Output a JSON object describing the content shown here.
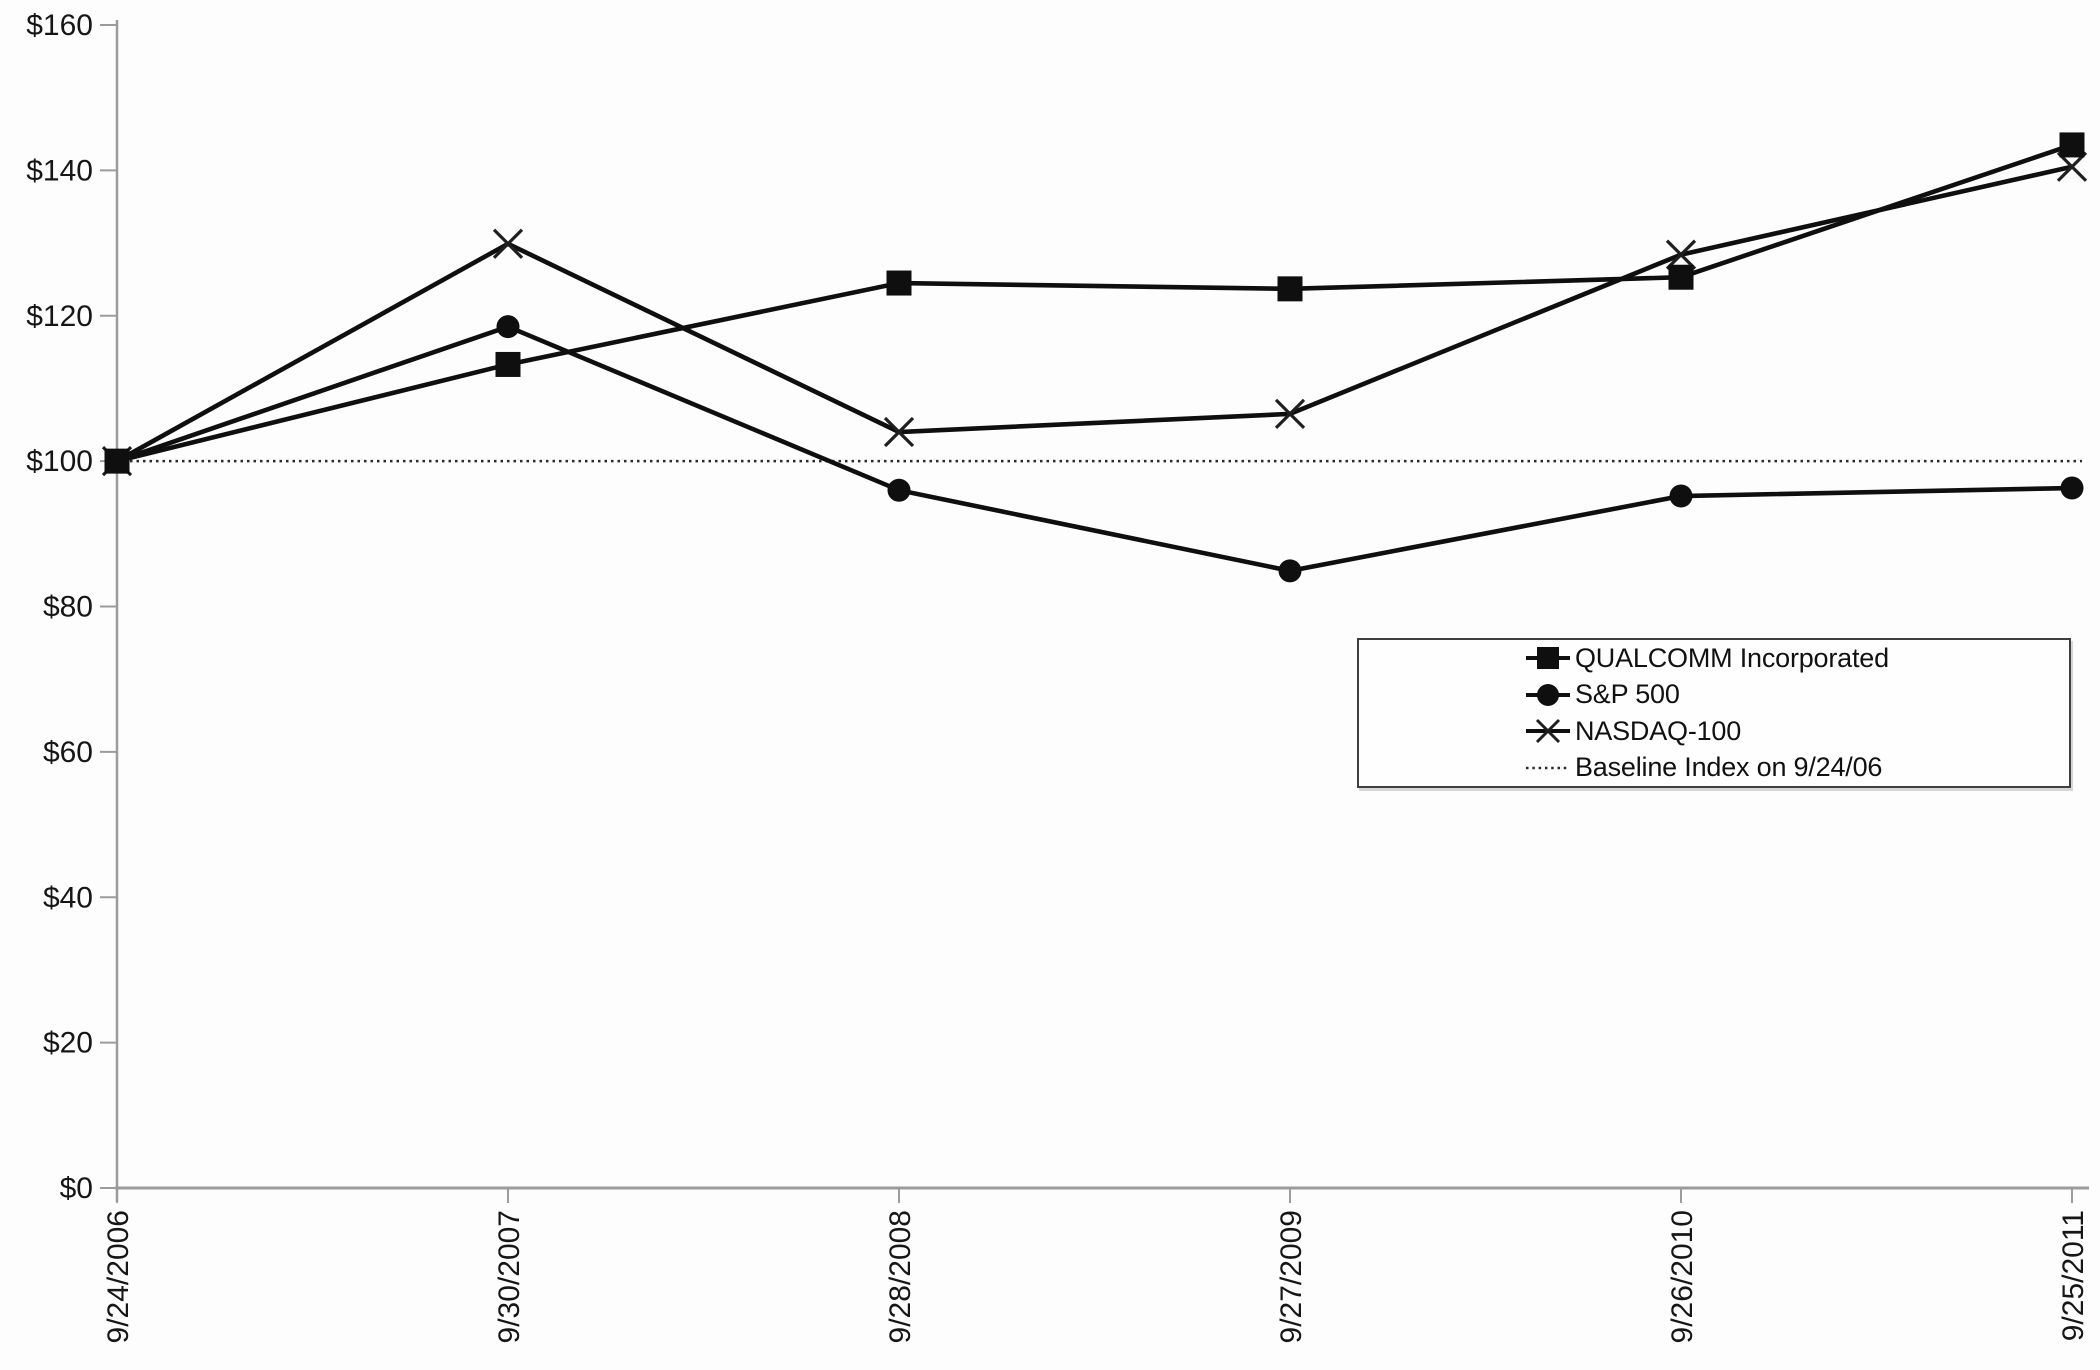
{
  "chart_data": {
    "type": "line",
    "title": "",
    "xlabel": "",
    "ylabel": "",
    "x_labels": [
      "9/24/2006",
      "9/30/2007",
      "9/28/2008",
      "9/27/2009",
      "9/26/2010",
      "9/25/2011"
    ],
    "series": [
      {
        "name": "QUALCOMM Incorporated",
        "marker": "square",
        "line_style": "solid",
        "values": [
          100.0,
          113.3,
          124.5,
          123.7,
          125.3,
          143.5
        ]
      },
      {
        "name": "S&P 500",
        "marker": "circle",
        "line_style": "solid",
        "values": [
          100.0,
          118.5,
          96.0,
          84.9,
          95.2,
          96.3
        ]
      },
      {
        "name": "NASDAQ-100",
        "marker": "x",
        "line_style": "solid",
        "values": [
          100.0,
          129.9,
          104.0,
          106.5,
          128.4,
          140.5
        ]
      },
      {
        "name": "Baseline Index on 9/24/06",
        "marker": "none",
        "line_style": "dotted",
        "values": [
          100.0,
          100.0,
          100.0,
          100.0,
          100.0,
          100.0
        ]
      }
    ],
    "ylim": [
      0,
      160
    ],
    "ytick_step": 20,
    "ytick_labels": [
      "$0",
      "$20",
      "$40",
      "$60",
      "$80",
      "$100",
      "$120",
      "$140",
      "$160"
    ],
    "grid": "off",
    "legend_position": "boxed, center-right",
    "colors": {
      "series": "#0f0f0f",
      "axis": "#9c9c9c",
      "text": "#161616",
      "background": "#fdfdfd"
    }
  }
}
